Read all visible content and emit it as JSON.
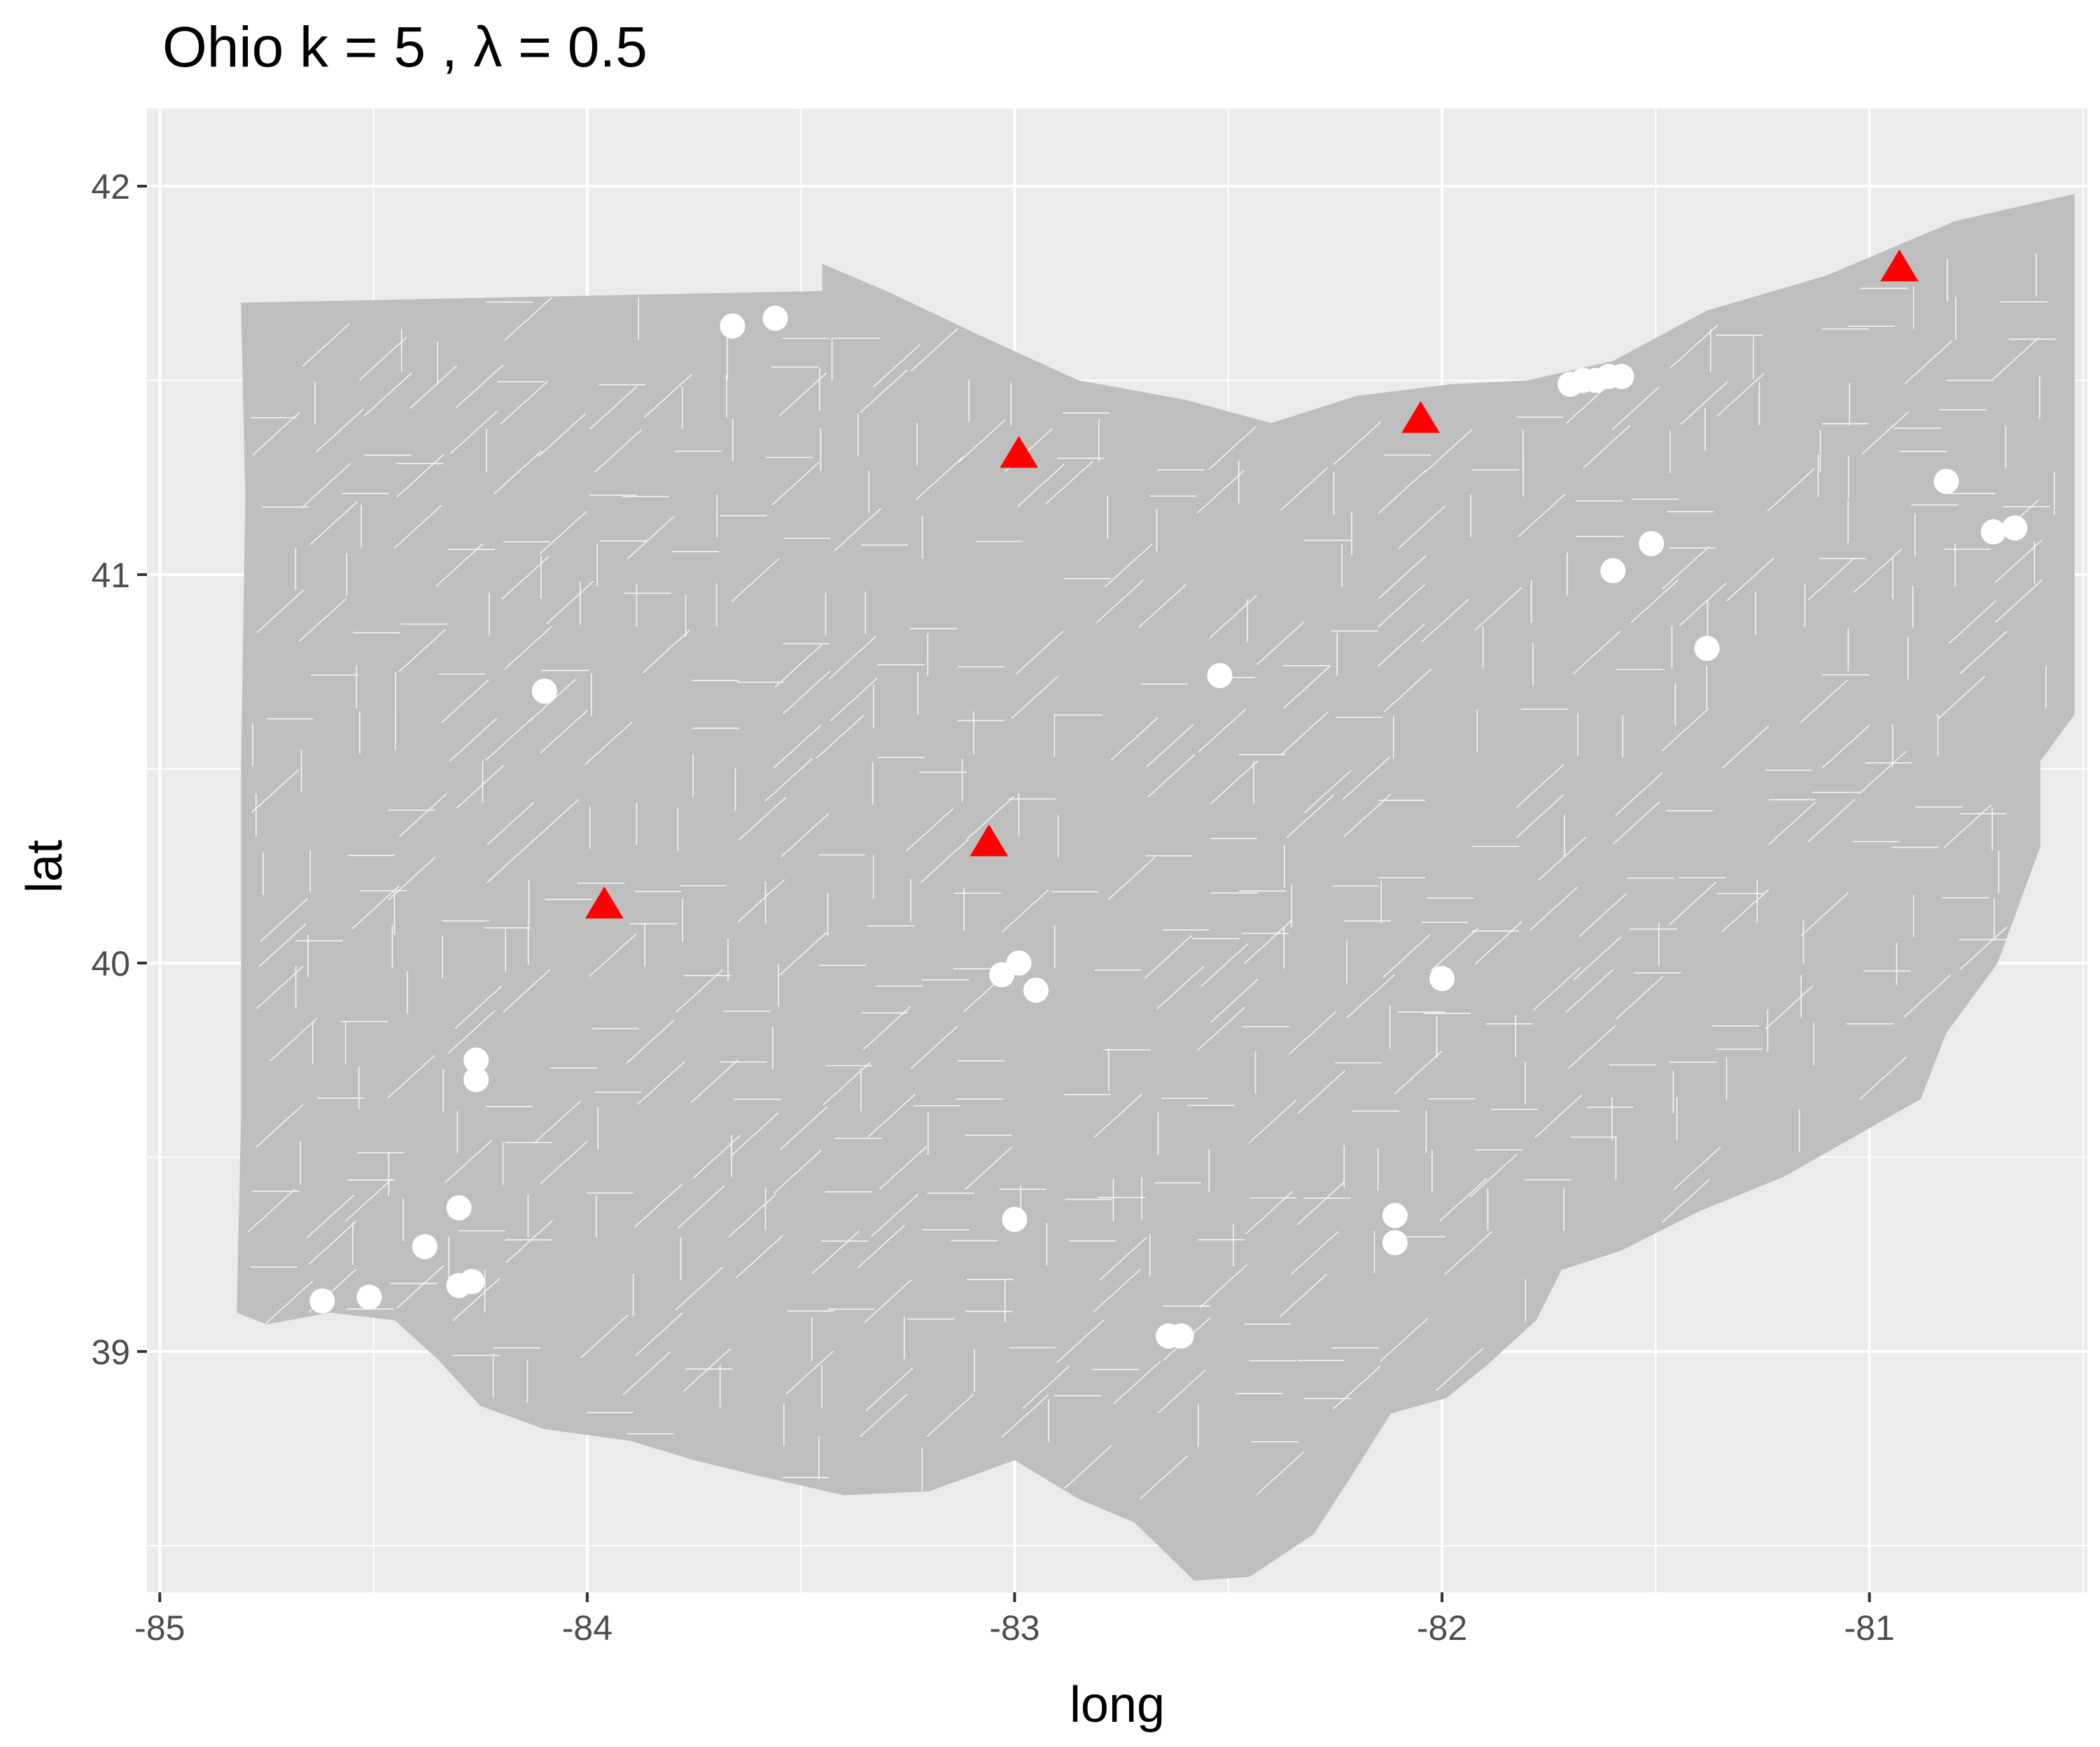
{
  "title": "Ohio  k =  5 ,  λ  =  0.5",
  "chart_data": {
    "type": "scatter",
    "title": "Ohio  k =  5 ,  λ  =  0.5",
    "xlabel": "long",
    "ylabel": "lat",
    "xlim": [
      -85.03,
      -80.49
    ],
    "ylim": [
      38.38,
      42.2
    ],
    "x_ticks": [
      -85,
      -84,
      -83,
      -82,
      -81
    ],
    "x_tick_labels": [
      "-85",
      "-84",
      "-83",
      "-82",
      "-81"
    ],
    "y_ticks": [
      39,
      40,
      41,
      42
    ],
    "y_tick_labels": [
      "39",
      "40",
      "41",
      "42"
    ],
    "grid": true,
    "legend": "none",
    "colors": {
      "panel_background": "#ebebeb",
      "grid": "#ffffff",
      "state_fill": "#bebebe",
      "tract_lines": "#ffffff",
      "circle_points": "#ffffff",
      "triangle_points": "#ff0000"
    },
    "series": [
      {
        "marker": "triangle",
        "color": "#ff0000",
        "points": [
          {
            "x": -80.93,
            "y": 41.79
          },
          {
            "x": -82.05,
            "y": 41.4
          },
          {
            "x": -82.99,
            "y": 41.31
          },
          {
            "x": -83.06,
            "y": 40.31
          },
          {
            "x": -83.96,
            "y": 40.15
          }
        ]
      },
      {
        "marker": "circle",
        "color": "#ffffff",
        "points": [
          {
            "x": -83.66,
            "y": 41.64
          },
          {
            "x": -83.56,
            "y": 41.66
          },
          {
            "x": -81.7,
            "y": 41.49
          },
          {
            "x": -81.67,
            "y": 41.5
          },
          {
            "x": -81.64,
            "y": 41.5
          },
          {
            "x": -81.61,
            "y": 41.51
          },
          {
            "x": -81.58,
            "y": 41.51
          },
          {
            "x": -80.82,
            "y": 41.24
          },
          {
            "x": -80.71,
            "y": 41.11
          },
          {
            "x": -80.66,
            "y": 41.12
          },
          {
            "x": -81.51,
            "y": 41.08
          },
          {
            "x": -81.6,
            "y": 41.01
          },
          {
            "x": -81.38,
            "y": 40.81
          },
          {
            "x": -82.52,
            "y": 40.74
          },
          {
            "x": -84.1,
            "y": 40.7
          },
          {
            "x": -82.99,
            "y": 40.0
          },
          {
            "x": -83.03,
            "y": 39.97
          },
          {
            "x": -82.95,
            "y": 39.93
          },
          {
            "x": -82.0,
            "y": 39.96
          },
          {
            "x": -84.26,
            "y": 39.75
          },
          {
            "x": -84.26,
            "y": 39.7
          },
          {
            "x": -84.3,
            "y": 39.37
          },
          {
            "x": -84.38,
            "y": 39.27
          },
          {
            "x": -84.3,
            "y": 39.17
          },
          {
            "x": -84.27,
            "y": 39.18
          },
          {
            "x": -84.51,
            "y": 39.14
          },
          {
            "x": -84.62,
            "y": 39.13
          },
          {
            "x": -83.0,
            "y": 39.34
          },
          {
            "x": -82.11,
            "y": 39.35
          },
          {
            "x": -82.11,
            "y": 39.28
          },
          {
            "x": -82.64,
            "y": 39.04
          },
          {
            "x": -82.61,
            "y": 39.04
          }
        ]
      }
    ]
  }
}
